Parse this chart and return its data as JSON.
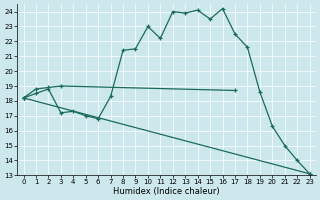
{
  "xlabel": "Humidex (Indice chaleur)",
  "xlim": [
    -0.5,
    23.5
  ],
  "ylim": [
    13,
    24.5
  ],
  "yticks": [
    13,
    14,
    15,
    16,
    17,
    18,
    19,
    20,
    21,
    22,
    23,
    24
  ],
  "xticks": [
    0,
    1,
    2,
    3,
    4,
    5,
    6,
    7,
    8,
    9,
    10,
    11,
    12,
    13,
    14,
    15,
    16,
    17,
    18,
    19,
    20,
    21,
    22,
    23
  ],
  "color": "#1a6b5a",
  "bg_color": "#cde8ec",
  "line1_x": [
    0,
    1,
    2,
    3,
    17
  ],
  "line1_y": [
    18.2,
    18.8,
    18.9,
    19.0,
    18.7
  ],
  "line2_x": [
    0,
    1,
    2,
    3,
    4,
    5,
    6,
    7,
    8,
    9,
    10,
    11,
    12,
    13,
    14,
    15,
    16,
    17,
    18,
    19,
    20,
    21,
    22,
    23
  ],
  "line2_y": [
    18.2,
    18.5,
    18.8,
    17.2,
    17.3,
    17.0,
    16.8,
    18.3,
    21.4,
    21.5,
    23.0,
    22.2,
    24.0,
    23.9,
    24.1,
    23.5,
    24.2,
    22.5,
    21.6,
    18.6,
    16.3,
    15.0,
    14.0,
    13.1
  ],
  "line3_x": [
    0,
    23
  ],
  "line3_y": [
    18.2,
    13.1
  ]
}
